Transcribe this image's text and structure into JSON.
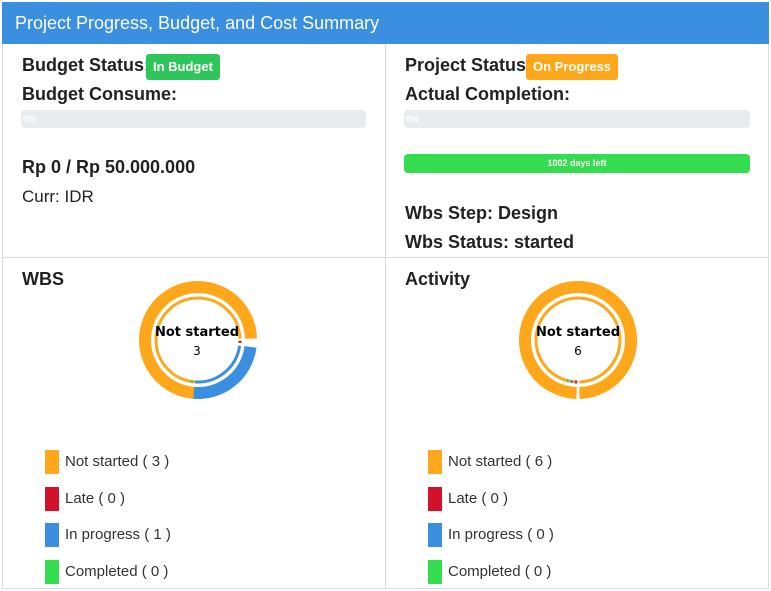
{
  "header": {
    "title": "Project Progress, Budget, and Cost Summary"
  },
  "budget": {
    "status_label": "Budget Status:",
    "status_badge": "In Budget",
    "consume_label": "Budget Consume:",
    "consume_percent_text": "0%",
    "consume_percent": 0,
    "amount": "Rp 0 / Rp 50.000.000",
    "currency": "Curr: IDR"
  },
  "project": {
    "status_label": "Project Status:",
    "status_badge": "On Progress",
    "completion_label": "Actual Completion:",
    "completion_percent_text": "0%",
    "completion_percent": 0,
    "days_left": "1002 days left",
    "wbs_step": "Wbs Step: Design",
    "wbs_status": "Wbs Status: started"
  },
  "colors": {
    "not_started": "#ffa71a",
    "late": "#d4112b",
    "in_progress": "#3a8fe0",
    "completed": "#34dc4f",
    "header": "#3a8fe0"
  },
  "wbs": {
    "title": "WBS",
    "center_title": "Not started",
    "center_value": "3",
    "legend": [
      {
        "label": "Not started ( 3 )",
        "value": 3,
        "color": "#ffa71a"
      },
      {
        "label": "Late ( 0 )",
        "value": 0,
        "color": "#d4112b"
      },
      {
        "label": "In progress ( 1 )",
        "value": 1,
        "color": "#3a8fe0"
      },
      {
        "label": "Completed ( 0 )",
        "value": 0,
        "color": "#34dc4f"
      }
    ]
  },
  "activity": {
    "title": "Activity",
    "center_title": "Not started",
    "center_value": "6",
    "legend": [
      {
        "label": "Not started ( 6 )",
        "value": 6,
        "color": "#ffa71a"
      },
      {
        "label": "Late ( 0 )",
        "value": 0,
        "color": "#d4112b"
      },
      {
        "label": "In progress ( 0 )",
        "value": 0,
        "color": "#3a8fe0"
      },
      {
        "label": "Completed ( 0 )",
        "value": 0,
        "color": "#34dc4f"
      }
    ]
  }
}
